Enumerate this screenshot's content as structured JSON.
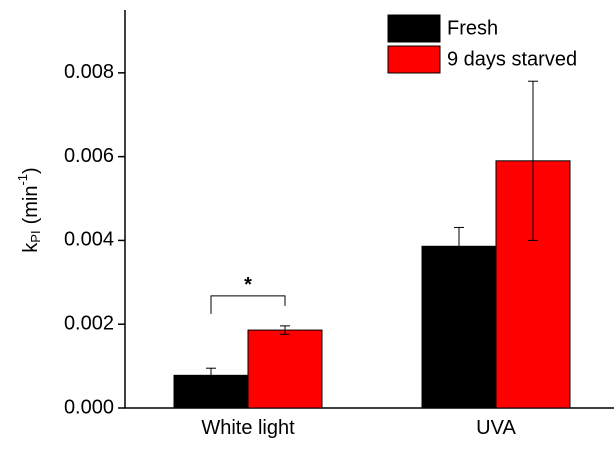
{
  "chart_data": {
    "type": "bar",
    "y_label": {
      "base": "k",
      "sub": "PI",
      "unit": "(min",
      "sup": "-1",
      "close": ")"
    },
    "categories": [
      "White light",
      "UVA"
    ],
    "series": [
      {
        "name": "Fresh",
        "color": "#000000",
        "values": [
          0.00078,
          0.00386
        ],
        "errors": [
          0.00017,
          0.00045
        ]
      },
      {
        "name": "9 days starved",
        "color": "#ff0000",
        "values": [
          0.00186,
          0.0059
        ],
        "errors": [
          0.0001,
          0.0019
        ]
      }
    ],
    "ylim": [
      0,
      0.0095
    ],
    "yticks": [
      {
        "value": 0,
        "label": "0.000"
      },
      0.002,
      0.004,
      0.006,
      0.008
    ],
    "legend": "upper right",
    "annotations": [
      {
        "text": "*",
        "category": 0
      }
    ]
  }
}
